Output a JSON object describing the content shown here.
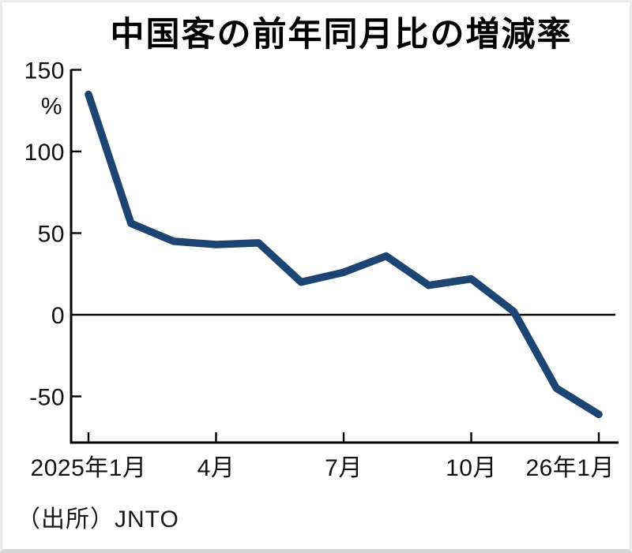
{
  "title": "中国客の前年同月比の増減率",
  "source": "（出所）JNTO",
  "chart_data": {
    "type": "line",
    "title": "中国客の前年同月比の増減率",
    "ylabel": "%",
    "xlabel": "",
    "months": [
      "2025年1月",
      "2025年2月",
      "2025年3月",
      "2025年4月",
      "2025年5月",
      "2025年6月",
      "2025年7月",
      "2025年8月",
      "2025年9月",
      "2025年10月",
      "2025年11月",
      "2025年12月",
      "2026年1月"
    ],
    "values": [
      135,
      56,
      45,
      43,
      44,
      20,
      26,
      36,
      18,
      22,
      2,
      -45,
      -61
    ],
    "x_ticks": [
      {
        "index": 0,
        "label": "2025年1月"
      },
      {
        "index": 3,
        "label": "4月"
      },
      {
        "index": 6,
        "label": "7月"
      },
      {
        "index": 9,
        "label": "10月"
      },
      {
        "index": 12,
        "label": "26年1月"
      }
    ],
    "y_ticks": [
      150,
      100,
      50,
      0,
      -50
    ],
    "ylim": [
      -78,
      152
    ],
    "grid": false,
    "legend": false,
    "zero_baseline": true,
    "line_color": "#1d4473",
    "axis_color": "#000000",
    "source": "（出所）JNTO"
  }
}
